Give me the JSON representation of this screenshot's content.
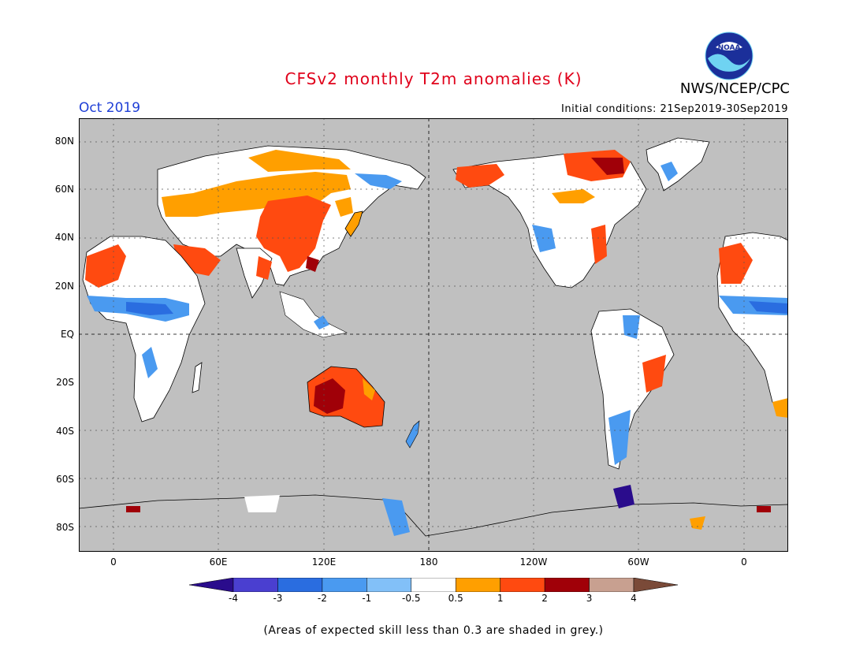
{
  "title": "CFSv2 monthly T2m anomalies (K)",
  "period": "Oct 2019",
  "agency": "NWS/NCEP/CPC",
  "logo_text": "NOAA",
  "initial_conditions": "Initial conditions: 21Sep2019-30Sep2019",
  "footnote": "(Areas of expected skill less than 0.3 are shaded in grey.)",
  "lat_labels": [
    "80N",
    "60N",
    "40N",
    "20N",
    "EQ",
    "20S",
    "40S",
    "60S",
    "80S"
  ],
  "lon_labels": [
    "0",
    "60E",
    "120E",
    "180",
    "120W",
    "60W",
    "0"
  ],
  "colorbar": {
    "labels": [
      "-4",
      "-3",
      "-2",
      "-1",
      "-0.5",
      "0.5",
      "1",
      "2",
      "3",
      "4"
    ],
    "colors": [
      "#2a0c8c",
      "#4a3fd0",
      "#2a6de0",
      "#4a9af0",
      "#82c0f8",
      "#ffffff",
      "#ff9f00",
      "#ff4a10",
      "#a00008",
      "#c8a090",
      "#7a4a38"
    ]
  },
  "colors": {
    "land_grey": "#c0c0c0",
    "warm_orange": "#ff9f00",
    "warm_red": "#ff4a10",
    "hot": "#a00008",
    "cool": "#4a9af0",
    "cooler": "#2a6de0",
    "white": "#ffffff"
  }
}
